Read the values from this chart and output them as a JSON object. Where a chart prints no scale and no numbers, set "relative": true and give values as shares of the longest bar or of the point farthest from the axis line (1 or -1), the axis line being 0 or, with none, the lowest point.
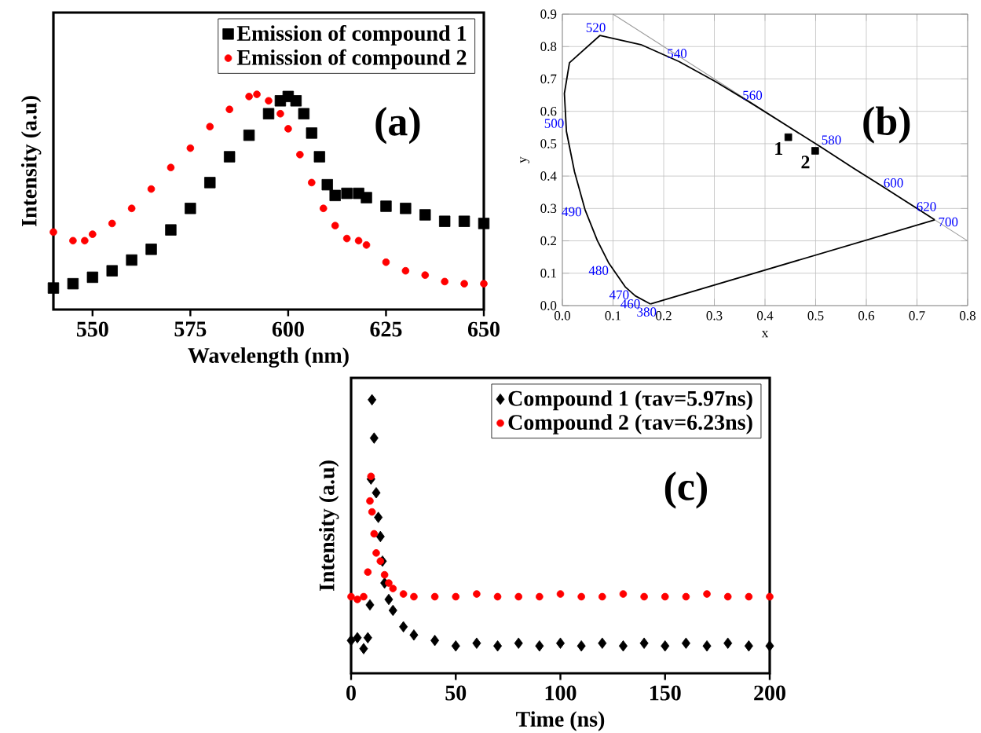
{
  "chart_data": [
    {
      "type": "scatter",
      "xlabel": "Wavelength (nm)",
      "ylabel": "Intensity (a.u)",
      "xlim": [
        540,
        650
      ],
      "xticks": [
        550,
        575,
        600,
        625,
        650
      ],
      "relative": true,
      "tick_labels": "x",
      "legend": "top right",
      "annotations": [
        "(a)"
      ],
      "series": [
        {
          "name": "**Emission of compound 1**",
          "color": "#000000",
          "marker": "square",
          "x": [
            540,
            545,
            550,
            555,
            560,
            565,
            570,
            575,
            580,
            585,
            590,
            595,
            598,
            600,
            602,
            604,
            606,
            608,
            610,
            612,
            615,
            618,
            620,
            625,
            630,
            635,
            640,
            645,
            650
          ],
          "values": [
            0.1,
            0.12,
            0.15,
            0.18,
            0.23,
            0.28,
            0.37,
            0.47,
            0.59,
            0.71,
            0.81,
            0.91,
            0.97,
            0.99,
            0.97,
            0.91,
            0.82,
            0.71,
            0.58,
            0.53,
            0.54,
            0.54,
            0.52,
            0.48,
            0.47,
            0.44,
            0.41,
            0.41,
            0.4
          ]
        },
        {
          "name": "**Emission of compound 2**",
          "color": "#ff0000",
          "marker": "circle",
          "x": [
            540,
            545,
            548,
            550,
            555,
            560,
            565,
            570,
            575,
            580,
            585,
            590,
            592,
            595,
            598,
            600,
            603,
            606,
            609,
            612,
            615,
            618,
            620,
            625,
            630,
            635,
            640,
            645,
            650
          ],
          "values": [
            0.36,
            0.32,
            0.32,
            0.35,
            0.4,
            0.47,
            0.56,
            0.66,
            0.75,
            0.85,
            0.93,
            0.99,
            1.0,
            0.97,
            0.91,
            0.84,
            0.72,
            0.59,
            0.47,
            0.39,
            0.33,
            0.32,
            0.3,
            0.22,
            0.18,
            0.16,
            0.13,
            0.12,
            0.12
          ]
        }
      ]
    },
    {
      "type": "line",
      "xlabel": "x",
      "ylabel": "y",
      "xlim": [
        0,
        0.8
      ],
      "ylim": [
        0,
        0.9
      ],
      "xticks": [
        {
          "value": 0,
          "label": "0.0"
        },
        0.1,
        0.2,
        0.3,
        0.4,
        0.5,
        0.6,
        0.7,
        0.8
      ],
      "yticks": [
        {
          "value": 0,
          "label": "0.0"
        },
        0.1,
        0.2,
        0.3,
        0.4,
        0.5,
        0.6,
        0.7,
        0.8,
        0.9
      ],
      "grid": true,
      "annotations": [
        "(b)",
        {
          "text": "1",
          "x": 0.446,
          "y": 0.52
        },
        {
          "text": "2",
          "x": 0.499,
          "y": 0.478
        },
        {
          "text": "380",
          "x": 0.174,
          "y": 0.005
        },
        {
          "text": "460",
          "x": 0.144,
          "y": 0.03
        },
        {
          "text": "470",
          "x": 0.124,
          "y": 0.058
        },
        {
          "text": "480",
          "x": 0.091,
          "y": 0.133
        },
        {
          "text": "490",
          "x": 0.045,
          "y": 0.295
        },
        {
          "text": "500",
          "x": 0.008,
          "y": 0.538
        },
        {
          "text": "520",
          "x": 0.074,
          "y": 0.834
        },
        {
          "text": "540",
          "x": 0.23,
          "y": 0.754
        },
        {
          "text": "560",
          "x": 0.373,
          "y": 0.625
        },
        {
          "text": "580",
          "x": 0.513,
          "y": 0.487
        },
        {
          "text": "600",
          "x": 0.627,
          "y": 0.373
        },
        {
          "text": "620",
          "x": 0.692,
          "y": 0.308
        },
        {
          "text": "700",
          "x": 0.735,
          "y": 0.265
        }
      ],
      "series": [
        {
          "type": "line",
          "color": "#999999",
          "x": [
            0.1,
            0.8
          ],
          "values": [
            0.9,
            0.2
          ]
        },
        {
          "type": "line",
          "color": "#000000",
          "x": [
            0.174,
            0.144,
            0.124,
            0.091,
            0.069,
            0.045,
            0.024,
            0.008,
            0.004,
            0.014,
            0.074,
            0.155,
            0.23,
            0.302,
            0.373,
            0.444,
            0.513,
            0.575,
            0.627,
            0.692,
            0.735
          ],
          "values": [
            0.005,
            0.03,
            0.058,
            0.133,
            0.201,
            0.295,
            0.413,
            0.538,
            0.655,
            0.75,
            0.834,
            0.806,
            0.754,
            0.692,
            0.625,
            0.555,
            0.487,
            0.424,
            0.373,
            0.308,
            0.265
          ]
        },
        {
          "type": "line",
          "color": "#000000",
          "x": [
            0.174,
            0.735
          ],
          "values": [
            0.005,
            0.265
          ]
        },
        {
          "type": "scatter",
          "color": "#000000",
          "marker": "square",
          "x": [
            0.446,
            0.499
          ],
          "values": [
            0.52,
            0.478
          ]
        }
      ]
    },
    {
      "type": "scatter",
      "xlabel": "Time (ns)",
      "ylabel": "Intensity (a.u)",
      "xlim": [
        0,
        200
      ],
      "xticks": [
        0,
        50,
        100,
        150,
        200
      ],
      "relative": true,
      "tick_labels": "x",
      "legend": "top right",
      "annotations": [
        "(c)"
      ],
      "series": [
        {
          "name": "**Compound 1** (τav=5.97ns)",
          "color": "#000000",
          "marker": "diamond",
          "x": [
            0,
            3,
            6,
            8,
            9,
            9.5,
            10,
            11,
            12,
            13,
            14,
            15,
            16,
            18,
            20,
            25,
            30,
            40,
            50,
            60,
            70,
            80,
            90,
            100,
            110,
            120,
            130,
            140,
            150,
            160,
            170,
            180,
            190,
            200
          ],
          "values": [
            0.12,
            0.13,
            0.09,
            0.13,
            0.25,
            0.71,
            1.0,
            0.86,
            0.66,
            0.57,
            0.5,
            0.41,
            0.33,
            0.27,
            0.23,
            0.17,
            0.14,
            0.12,
            0.1,
            0.11,
            0.1,
            0.11,
            0.1,
            0.11,
            0.1,
            0.11,
            0.1,
            0.11,
            0.1,
            0.11,
            0.1,
            0.11,
            0.1,
            0.1
          ]
        },
        {
          "name": "**Compound 2** (τav=6.23ns)",
          "color": "#ff0000",
          "marker": "circle",
          "x": [
            0,
            3,
            6,
            8,
            9,
            9.5,
            10,
            11,
            12,
            14,
            16,
            18,
            20,
            25,
            30,
            40,
            50,
            60,
            70,
            80,
            90,
            100,
            110,
            120,
            130,
            140,
            150,
            160,
            170,
            180,
            190,
            200
          ],
          "values": [
            0.28,
            0.27,
            0.28,
            0.37,
            0.63,
            0.72,
            0.59,
            0.51,
            0.44,
            0.41,
            0.36,
            0.33,
            0.31,
            0.29,
            0.28,
            0.28,
            0.28,
            0.29,
            0.28,
            0.28,
            0.28,
            0.29,
            0.28,
            0.28,
            0.29,
            0.28,
            0.28,
            0.28,
            0.29,
            0.28,
            0.28,
            0.28
          ]
        }
      ]
    }
  ]
}
